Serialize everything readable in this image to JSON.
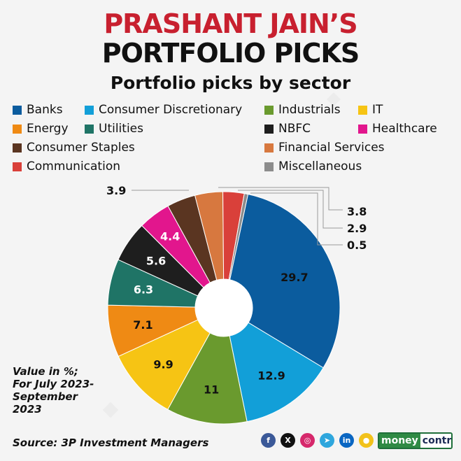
{
  "header": {
    "title_line1": "PRASHANT JAIN’S",
    "title_line2": "PORTFOLIO PICKS",
    "subtitle": "Portfolio picks by sector"
  },
  "chart_data": {
    "type": "pie",
    "title": "Portfolio picks by sector",
    "donut": true,
    "unit": "%",
    "slices": [
      {
        "name": "Banks",
        "value": 29.7,
        "label": "29.7",
        "color": "#0b5c9e"
      },
      {
        "name": "Consumer Discretionary",
        "value": 12.9,
        "label": "12.9",
        "color": "#129fd8"
      },
      {
        "name": "Industrials",
        "value": 11,
        "label": "11",
        "color": "#6a9a2e"
      },
      {
        "name": "IT",
        "value": 9.9,
        "label": "9.9",
        "color": "#f6c414"
      },
      {
        "name": "Energy",
        "value": 7.1,
        "label": "7.1",
        "color": "#ef8a14"
      },
      {
        "name": "Utilities",
        "value": 6.3,
        "label": "6.3",
        "color": "#1f7466"
      },
      {
        "name": "NBFC",
        "value": 5.6,
        "label": "5.6",
        "color": "#1e1e1e"
      },
      {
        "name": "Healthcare",
        "value": 4.4,
        "label": "4.4",
        "color": "#e2168d"
      },
      {
        "name": "Consumer Staples",
        "value": 3.9,
        "label": "3.9",
        "color": "#5a3521"
      },
      {
        "name": "Financial Services",
        "value": 3.8,
        "label": "3.8",
        "color": "#d7783f"
      },
      {
        "name": "Communication",
        "value": 2.9,
        "label": "2.9",
        "color": "#d9403a"
      },
      {
        "name": "Miscellaneous",
        "value": 0.5,
        "label": "0.5",
        "color": "#8c8c8c"
      }
    ],
    "legend": [
      {
        "label": "Banks",
        "color": "#0b5c9e"
      },
      {
        "label": "Consumer Discretionary",
        "color": "#129fd8"
      },
      {
        "label": "Industrials",
        "color": "#6a9a2e"
      },
      {
        "label": "IT",
        "color": "#f6c414"
      },
      {
        "label": "Energy",
        "color": "#ef8a14"
      },
      {
        "label": "Utilities",
        "color": "#1f7466"
      },
      {
        "label": "NBFC",
        "color": "#1e1e1e"
      },
      {
        "label": "Healthcare",
        "color": "#e2168d"
      },
      {
        "label": "Consumer Staples",
        "color": "#5a3521"
      },
      {
        "label": "Financial Services",
        "color": "#d7783f"
      },
      {
        "label": "Communication",
        "color": "#d9403a"
      },
      {
        "label": "Miscellaneous",
        "color": "#8c8c8c"
      }
    ],
    "legend_placement": "top"
  },
  "footer": {
    "note_lines": [
      "Value in %;",
      "For July 2023-",
      "September",
      "2023"
    ],
    "source": "Source: 3P Investment Managers",
    "brand_part1": "money",
    "brand_part2": "control"
  },
  "social_icons": [
    {
      "name": "facebook-icon",
      "glyph": "f",
      "color": "#3b5998"
    },
    {
      "name": "x-icon",
      "glyph": "X",
      "color": "#111111"
    },
    {
      "name": "instagram-icon",
      "glyph": "◎",
      "color": "#d6286b"
    },
    {
      "name": "telegram-icon",
      "glyph": "➤",
      "color": "#2ea6dd"
    },
    {
      "name": "linkedin-icon",
      "glyph": "in",
      "color": "#0a66c2"
    },
    {
      "name": "koo-icon",
      "glyph": "●",
      "color": "#f2c21b"
    }
  ]
}
